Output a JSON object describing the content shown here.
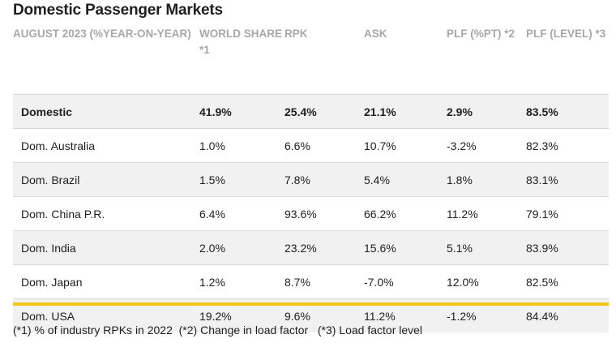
{
  "title": "Domestic Passenger Markets",
  "table": {
    "headers": [
      "AUGUST 2023 (%YEAR-ON-YEAR)",
      "WORLD SHARE *1",
      "RPK",
      "ASK",
      "PLF (%PT) *2",
      "PLF (LEVEL) *3"
    ],
    "rows": [
      {
        "market": "Domestic",
        "world_share": "41.9%",
        "rpk": "25.4%",
        "ask": "21.1%",
        "plf_pt": "2.9%",
        "plf_level": "83.5%"
      },
      {
        "market": "Dom. Australia",
        "world_share": "1.0%",
        "rpk": "6.6%",
        "ask": "10.7%",
        "plf_pt": "-3.2%",
        "plf_level": "82.3%"
      },
      {
        "market": "Dom. Brazil",
        "world_share": "1.5%",
        "rpk": "7.8%",
        "ask": "5.4%",
        "plf_pt": "1.8%",
        "plf_level": "83.1%"
      },
      {
        "market": "Dom. China P.R.",
        "world_share": "6.4%",
        "rpk": "93.6%",
        "ask": "66.2%",
        "plf_pt": "11.2%",
        "plf_level": "79.1%"
      },
      {
        "market": "Dom. India",
        "world_share": "2.0%",
        "rpk": "23.2%",
        "ask": "15.6%",
        "plf_pt": "5.1%",
        "plf_level": "83.9%"
      },
      {
        "market": "Dom. Japan",
        "world_share": "1.2%",
        "rpk": "8.7%",
        "ask": "-7.0%",
        "plf_pt": "12.0%",
        "plf_level": "82.5%"
      },
      {
        "market": "Dom. USA",
        "world_share": "19.2%",
        "rpk": "9.6%",
        "ask": "11.2%",
        "plf_pt": "-1.2%",
        "plf_level": "84.4%"
      }
    ]
  },
  "footnote": "(*1) % of industry RPKs in 2022  (*2) Change in load factor   (*3) Load factor level",
  "colors": {
    "accent": "#f5c518",
    "header_text": "#a8a8a8",
    "row_shade": "#f1f1f1"
  }
}
